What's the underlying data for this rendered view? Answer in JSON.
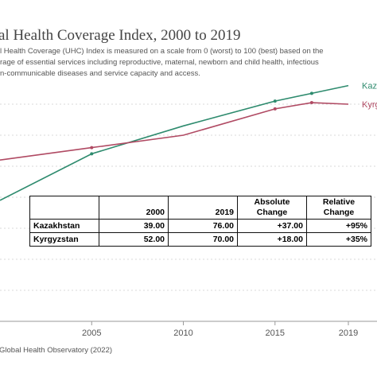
{
  "title": "al Health Coverage Index, 2000 to 2019",
  "subtitle_lines": [
    "l Health Coverage (UHC) Index is measured on a scale from 0 (worst) to 100 (best) based on the",
    "rage of essential services including reproductive, maternal, newborn and child health, infectious",
    "n-communicable diseases and service capacity and access."
  ],
  "source": "Global Health Observatory (2022)",
  "colors": {
    "kazakhstan": "#2e8b6e",
    "kyrgyzstan": "#b04a63",
    "grid": "#cccccc"
  },
  "table": {
    "headers": [
      "",
      "2000",
      "2019",
      "Absolute\nChange",
      "Relative\nChange"
    ],
    "header_lines": [
      [
        "",
        "",
        "",
        "Absolute",
        "Relative"
      ],
      [
        "",
        "2000",
        "2019",
        "Change",
        "Change"
      ]
    ],
    "rows": [
      [
        "Kazakhstan",
        "39.00",
        "76.00",
        "+37.00",
        "+95%"
      ],
      [
        "Kyrgyzstan",
        "52.00",
        "70.00",
        "+18.00",
        "+35%"
      ]
    ]
  },
  "chart_data": {
    "type": "line",
    "title": "al Health Coverage Index, 2000 to 2019",
    "x_ticks": [
      "2005",
      "2010",
      "2015",
      "2019"
    ],
    "xlim": [
      2000,
      2019
    ],
    "ylim": [
      0,
      80
    ],
    "grid": true,
    "series": [
      {
        "name": "Kaza",
        "x": [
          2000,
          2005,
          2010,
          2015,
          2017,
          2019
        ],
        "values": [
          39,
          54,
          63,
          71,
          73.5,
          76
        ],
        "markers": [
          2005,
          2015,
          2017
        ]
      },
      {
        "name": "Kyrg",
        "x": [
          2000,
          2005,
          2010,
          2015,
          2017,
          2019
        ],
        "values": [
          52,
          56,
          60,
          68.5,
          70.5,
          70
        ],
        "markers": [
          2005,
          2015,
          2017
        ]
      }
    ]
  }
}
